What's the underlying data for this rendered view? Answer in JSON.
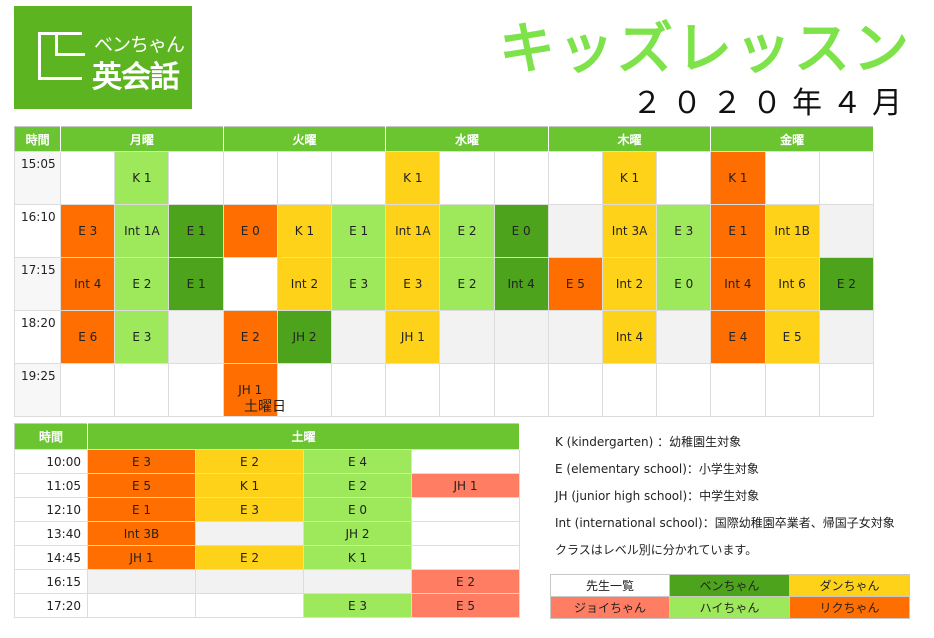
{
  "logo": {
    "line1": "ベンちゃん",
    "line2": "英会話"
  },
  "title": "キッズレッスン",
  "subtitle": "２０２０年４月",
  "week": {
    "time_header": "時間",
    "days": [
      "月曜",
      "火曜",
      "水曜",
      "木曜",
      "金曜"
    ],
    "rows": [
      {
        "time": "15:05",
        "cells": [
          {
            "t": "",
            "c": "w"
          },
          {
            "t": "K 1",
            "c": "l"
          },
          {
            "t": "",
            "c": "w"
          },
          {
            "t": "",
            "c": "w"
          },
          {
            "t": "",
            "c": "w"
          },
          {
            "t": "",
            "c": "w"
          },
          {
            "t": "K 1",
            "c": "y"
          },
          {
            "t": "",
            "c": "w"
          },
          {
            "t": "",
            "c": "w"
          },
          {
            "t": "",
            "c": "w"
          },
          {
            "t": "K 1",
            "c": "y"
          },
          {
            "t": "",
            "c": "w"
          },
          {
            "t": "K 1",
            "c": "o"
          },
          {
            "t": "",
            "c": "w"
          },
          {
            "t": "",
            "c": "w"
          }
        ]
      },
      {
        "time": "16:10",
        "cells": [
          {
            "t": "E 3",
            "c": "o"
          },
          {
            "t": "Int 1A",
            "c": "l"
          },
          {
            "t": "E 1",
            "c": "d"
          },
          {
            "t": "E 0",
            "c": "o"
          },
          {
            "t": "K 1",
            "c": "y"
          },
          {
            "t": "E 1",
            "c": "l"
          },
          {
            "t": "Int 1A",
            "c": "y"
          },
          {
            "t": "E 2",
            "c": "l"
          },
          {
            "t": "E 0",
            "c": "d"
          },
          {
            "t": "",
            "c": "g"
          },
          {
            "t": "Int 3A",
            "c": "y"
          },
          {
            "t": "E 3",
            "c": "l"
          },
          {
            "t": "E 1",
            "c": "o"
          },
          {
            "t": "Int 1B",
            "c": "y"
          },
          {
            "t": "",
            "c": "g"
          }
        ]
      },
      {
        "time": "17:15",
        "cells": [
          {
            "t": "Int 4",
            "c": "o"
          },
          {
            "t": "E 2",
            "c": "l"
          },
          {
            "t": "E 1",
            "c": "d"
          },
          {
            "t": "",
            "c": "w"
          },
          {
            "t": "Int 2",
            "c": "y"
          },
          {
            "t": "E 3",
            "c": "l"
          },
          {
            "t": "E 3",
            "c": "y"
          },
          {
            "t": "E 2",
            "c": "l"
          },
          {
            "t": "Int 4",
            "c": "d"
          },
          {
            "t": "E 5",
            "c": "o"
          },
          {
            "t": "Int 2",
            "c": "y"
          },
          {
            "t": "E 0",
            "c": "l"
          },
          {
            "t": "Int 4",
            "c": "o"
          },
          {
            "t": "Int 6",
            "c": "y"
          },
          {
            "t": "E 2",
            "c": "d"
          }
        ]
      },
      {
        "time": "18:20",
        "cells": [
          {
            "t": "E 6",
            "c": "o"
          },
          {
            "t": "E 3",
            "c": "l"
          },
          {
            "t": "",
            "c": "g"
          },
          {
            "t": "E 2",
            "c": "o"
          },
          {
            "t": "JH 2",
            "c": "d"
          },
          {
            "t": "",
            "c": "g"
          },
          {
            "t": "JH 1",
            "c": "y"
          },
          {
            "t": "",
            "c": "g"
          },
          {
            "t": "",
            "c": "g"
          },
          {
            "t": "",
            "c": "g"
          },
          {
            "t": "Int 4",
            "c": "y"
          },
          {
            "t": "",
            "c": "g"
          },
          {
            "t": "E 4",
            "c": "o"
          },
          {
            "t": "E 5",
            "c": "y"
          },
          {
            "t": "",
            "c": "g"
          }
        ]
      },
      {
        "time": "19:25",
        "cells": [
          {
            "t": "",
            "c": "w"
          },
          {
            "t": "",
            "c": "w"
          },
          {
            "t": "",
            "c": "w"
          },
          {
            "t": "JH 1",
            "c": "o"
          },
          {
            "t": "",
            "c": "w"
          },
          {
            "t": "",
            "c": "w"
          },
          {
            "t": "",
            "c": "w"
          },
          {
            "t": "",
            "c": "w"
          },
          {
            "t": "",
            "c": "w"
          },
          {
            "t": "",
            "c": "w"
          },
          {
            "t": "",
            "c": "w"
          },
          {
            "t": "",
            "c": "w"
          },
          {
            "t": "",
            "c": "w"
          },
          {
            "t": "",
            "c": "w"
          },
          {
            "t": "",
            "c": "w"
          }
        ]
      }
    ]
  },
  "saturday_label": "土曜日",
  "saturday": {
    "time_header": "時間",
    "day_header": "土曜",
    "rows": [
      {
        "time": "10:00",
        "cells": [
          {
            "t": "E 3",
            "c": "o"
          },
          {
            "t": "E 2",
            "c": "y"
          },
          {
            "t": "E 4",
            "c": "l"
          },
          {
            "t": "",
            "c": "w"
          }
        ]
      },
      {
        "time": "11:05",
        "cells": [
          {
            "t": "E 5",
            "c": "o"
          },
          {
            "t": "K 1",
            "c": "y"
          },
          {
            "t": "E 2",
            "c": "l"
          },
          {
            "t": "JH 1",
            "c": "s"
          }
        ]
      },
      {
        "time": "12:10",
        "cells": [
          {
            "t": "E 1",
            "c": "o"
          },
          {
            "t": "E 3",
            "c": "y"
          },
          {
            "t": "E 0",
            "c": "l"
          },
          {
            "t": "",
            "c": "w"
          }
        ]
      },
      {
        "time": "13:40",
        "cells": [
          {
            "t": "Int 3B",
            "c": "o"
          },
          {
            "t": "",
            "c": "g"
          },
          {
            "t": "JH 2",
            "c": "l"
          },
          {
            "t": "",
            "c": "w"
          }
        ]
      },
      {
        "time": "14:45",
        "cells": [
          {
            "t": "JH 1",
            "c": "o"
          },
          {
            "t": "E 2",
            "c": "y"
          },
          {
            "t": "K 1",
            "c": "l"
          },
          {
            "t": "",
            "c": "w"
          }
        ]
      },
      {
        "time": "16:15",
        "cells": [
          {
            "t": "",
            "c": "g"
          },
          {
            "t": "",
            "c": "g"
          },
          {
            "t": "",
            "c": "g"
          },
          {
            "t": "E 2",
            "c": "s"
          }
        ]
      },
      {
        "time": "17:20",
        "cells": [
          {
            "t": "",
            "c": "w"
          },
          {
            "t": "",
            "c": "w"
          },
          {
            "t": "E 3",
            "c": "l"
          },
          {
            "t": "E 5",
            "c": "s"
          }
        ]
      }
    ]
  },
  "notes": [
    "K (kindergarten) ：幼稚園生対象",
    "E (elementary school)：小学生対象",
    "JH (junior high school)：中学生対象",
    "Int (international school)：国際幼稚園卒業者、帰国子女対象",
    "クラスはレベル別に分かれています。"
  ],
  "legend": [
    [
      {
        "t": "先生一覧",
        "c": "w"
      },
      {
        "t": "ベンちゃん",
        "c": "d"
      },
      {
        "t": "ダンちゃん",
        "c": "y"
      }
    ],
    [
      {
        "t": "ジョイちゃん",
        "c": "s"
      },
      {
        "t": "ハイちゃん",
        "c": "l"
      },
      {
        "t": "リクちゃん",
        "c": "o"
      }
    ]
  ],
  "colors": {
    "o": "#ff6e00",
    "y": "#ffd21a",
    "l": "#9ee85c",
    "d": "#4da41c",
    "s": "#ff7d62",
    "header": "#6ac531",
    "title": "#7ee24a"
  }
}
